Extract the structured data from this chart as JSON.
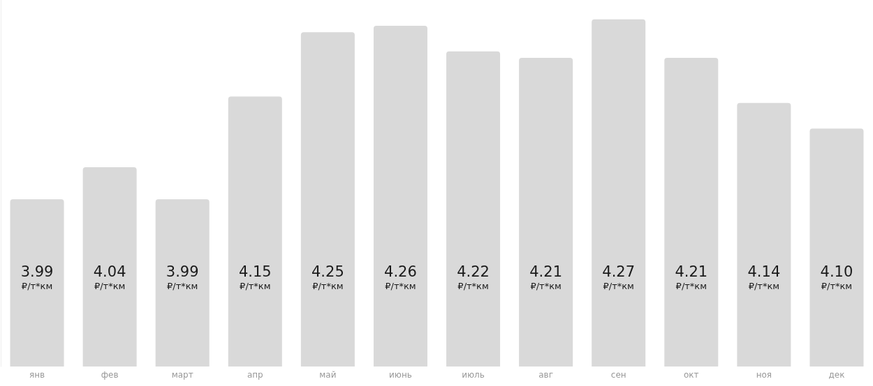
{
  "chart_data": {
    "type": "bar",
    "categories": [
      "янв",
      "фев",
      "март",
      "апр",
      "май",
      "июнь",
      "июль",
      "авг",
      "сен",
      "окт",
      "ноя",
      "дек"
    ],
    "values": [
      3.99,
      4.04,
      3.99,
      4.15,
      4.25,
      4.26,
      4.22,
      4.21,
      4.27,
      4.21,
      4.14,
      4.1
    ],
    "value_labels": [
      "3.99\n₽/т*км",
      "4.04\n₽/т*км",
      "3.99\n₽/т*км",
      "4.15\n₽/т*км",
      "4.25\n₽/т*км",
      "4.26\n₽/т*км",
      "4.22\n₽/т*км",
      "4.21\n₽/т*км",
      "4.27\n₽/т*км",
      "4.21\n₽/т*км",
      "4.14\n₽/т*км",
      "4.10\n₽/т*км"
    ],
    "color": "#d9d9d9",
    "ylim": [
      3.73,
      4.3
    ],
    "tick_labels": "x",
    "grid": false
  }
}
